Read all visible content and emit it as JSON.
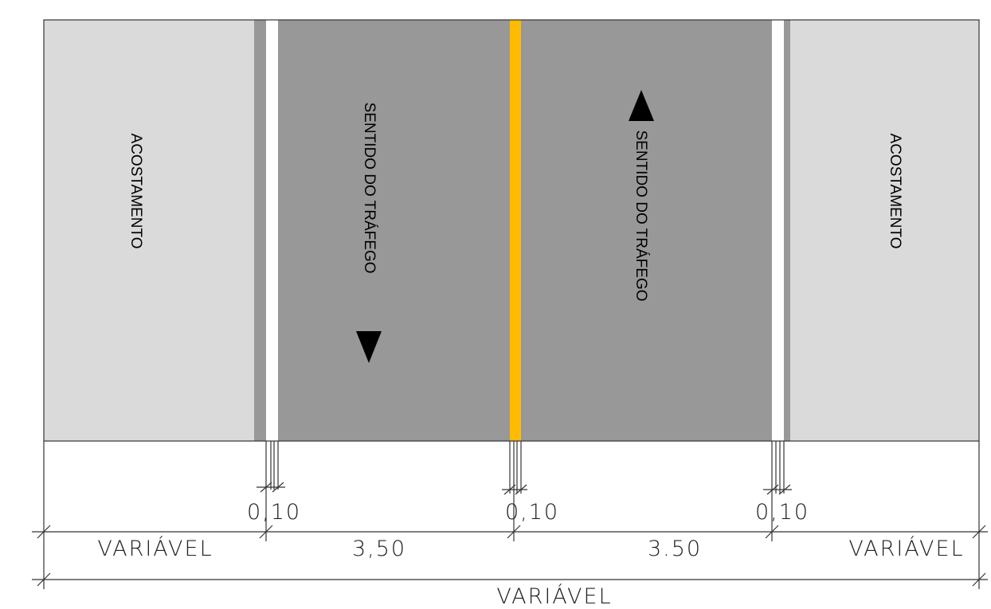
{
  "colors": {
    "shoulder": "#dadada",
    "lane": "#989898",
    "edge_line": "#ffffff",
    "center_line": "#ffbb00",
    "arrow": "#000000"
  },
  "labels": {
    "shoulder_left": "ACOSTAMENTO",
    "lane_left": "SENTIDO DO TRÁFEGO",
    "lane_right": "SENTIDO DO TRÁFEGO",
    "shoulder_right": "ACOSTAMENTO"
  },
  "arrows": {
    "left_lane": "arrow-down-icon",
    "right_lane": "arrow-up-icon"
  },
  "dimensions": {
    "line_left": "0,10",
    "line_center": "0,10",
    "line_right": "0,10",
    "shoulder_left": "VARIÁVEL",
    "lane_left": "3,50",
    "lane_right": "3.50",
    "shoulder_right": "VARIÁVEL",
    "total": "VARIÁVEL"
  }
}
